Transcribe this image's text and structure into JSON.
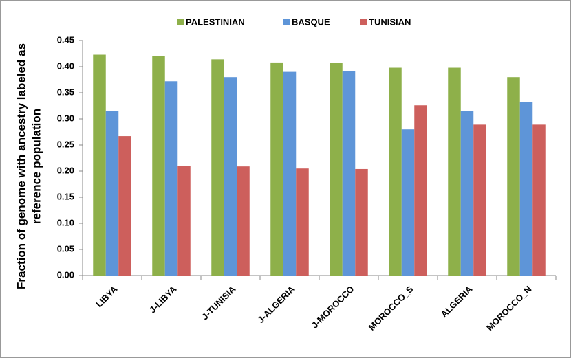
{
  "chart_data": {
    "type": "bar",
    "y_label": [
      "Fraction of genome with ancestry labeled as",
      "reference population"
    ],
    "categories": [
      "LIBYA",
      "J-LIBYA",
      "J-TUNISIA",
      "J-ALGERIA",
      "J-MOROCCO",
      "MOROCCO_S",
      "ALGERIA",
      "MOROCCO_N"
    ],
    "series": [
      {
        "name": "PALESTINIAN",
        "color": "#8eb04a",
        "values": [
          0.423,
          0.42,
          0.414,
          0.408,
          0.407,
          0.398,
          0.398,
          0.38
        ]
      },
      {
        "name": "BASQUE",
        "color": "#5e95d8",
        "values": [
          0.315,
          0.372,
          0.38,
          0.39,
          0.392,
          0.28,
          0.315,
          0.332
        ]
      },
      {
        "name": "TUNISIAN",
        "color": "#cd5f5c",
        "values": [
          0.267,
          0.21,
          0.209,
          0.205,
          0.204,
          0.326,
          0.289,
          0.289
        ]
      }
    ],
    "ylim": [
      0,
      0.45
    ],
    "yticks": [
      {
        "value": 0,
        "label": "0.00"
      },
      {
        "value": 0.05,
        "label": "0.05"
      },
      {
        "value": 0.1,
        "label": "0.10"
      },
      {
        "value": 0.15,
        "label": "0.15"
      },
      {
        "value": 0.2,
        "label": "0.20"
      },
      {
        "value": 0.25,
        "label": "0.25"
      },
      {
        "value": 0.3,
        "label": "0.30"
      },
      {
        "value": 0.35,
        "label": "0.35"
      },
      {
        "value": 0.4,
        "label": "0.40"
      },
      {
        "value": 0.45,
        "label": "0.45"
      }
    ],
    "grid": false,
    "legend": "top"
  }
}
